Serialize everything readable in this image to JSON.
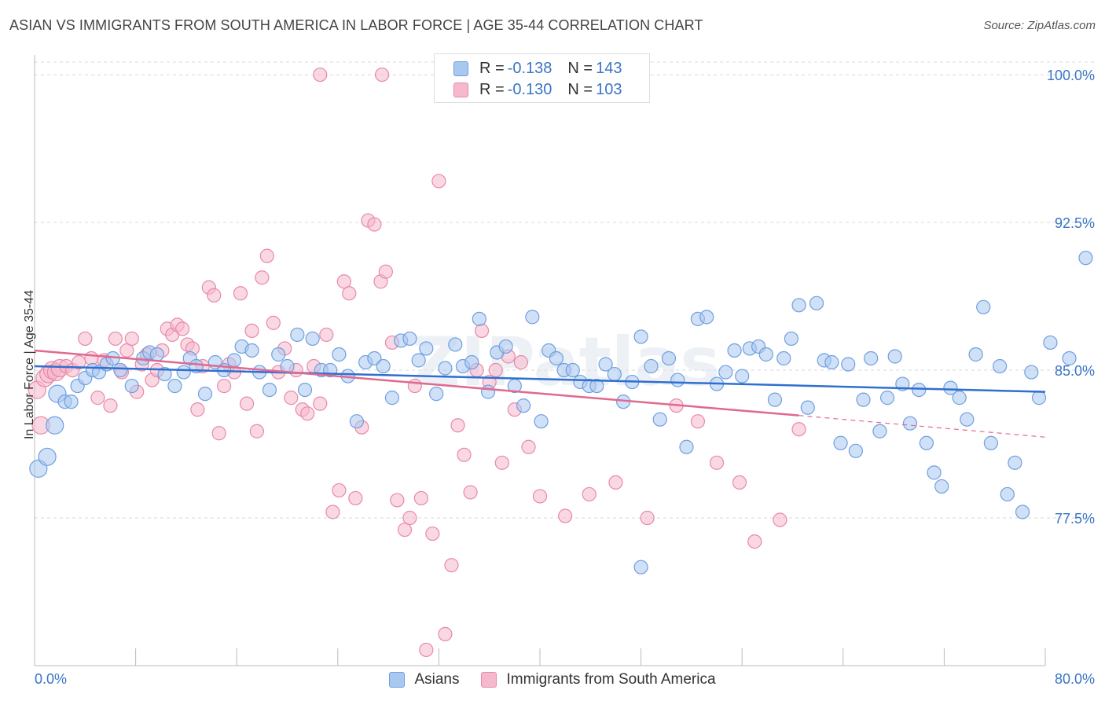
{
  "title": "ASIAN VS IMMIGRANTS FROM SOUTH AMERICA IN LABOR FORCE | AGE 35-44 CORRELATION CHART",
  "source": "Source: ZipAtlas.com",
  "watermark": "ZIPatlas",
  "legend_top": [
    {
      "r_label": "R =",
      "r_value": "-0.138",
      "n_label": "N =",
      "n_value": "143",
      "color": "#a9c8f0",
      "border": "#6f9fe0"
    },
    {
      "r_label": "R =",
      "r_value": "-0.130",
      "n_label": "N =",
      "n_value": "103",
      "color": "#f5b8cc",
      "border": "#e889a8"
    }
  ],
  "legend_bottom": [
    {
      "label": "Asians",
      "color": "#a9c8f0",
      "border": "#6f9fe0"
    },
    {
      "label": "Immigrants from South America",
      "color": "#f5b8cc",
      "border": "#e889a8"
    }
  ],
  "chart_data": {
    "type": "scatter",
    "title": "ASIAN VS IMMIGRANTS FROM SOUTH AMERICA IN LABOR FORCE | AGE 35-44 CORRELATION CHART",
    "xlabel": "",
    "ylabel": "In Labor Force | Age 35-44",
    "xlim": [
      0,
      80
    ],
    "ylim": [
      70.0,
      101.0
    ],
    "x_tick_labels": [
      "0.0%",
      "80.0%"
    ],
    "y_ticks": [
      77.5,
      85.0,
      92.5,
      100.0
    ],
    "y_tick_labels": [
      "77.5%",
      "85.0%",
      "92.5%",
      "100.0%"
    ],
    "grid": true,
    "series": [
      {
        "name": "Asians",
        "color": "#6f9fe0",
        "fill": "#a9c8f0",
        "trend": {
          "x": [
            0,
            80
          ],
          "y": [
            85.2,
            83.9
          ],
          "color": "#2f6fcf"
        },
        "points": [
          [
            0.3,
            80.0
          ],
          [
            1.0,
            80.6
          ],
          [
            1.6,
            82.2
          ],
          [
            1.8,
            83.8
          ],
          [
            2.4,
            83.4
          ],
          [
            2.9,
            83.4
          ],
          [
            3.4,
            84.2
          ],
          [
            4.0,
            84.6
          ],
          [
            4.6,
            85.0
          ],
          [
            5.1,
            84.9
          ],
          [
            5.7,
            85.3
          ],
          [
            6.2,
            85.6
          ],
          [
            6.8,
            85.0
          ],
          [
            7.7,
            84.2
          ],
          [
            8.6,
            85.6
          ],
          [
            9.1,
            85.9
          ],
          [
            9.7,
            85.8
          ],
          [
            10.3,
            84.8
          ],
          [
            11.1,
            84.2
          ],
          [
            11.8,
            84.9
          ],
          [
            12.3,
            85.6
          ],
          [
            12.8,
            85.2
          ],
          [
            13.5,
            83.8
          ],
          [
            14.3,
            85.4
          ],
          [
            15.0,
            85.0
          ],
          [
            15.8,
            85.5
          ],
          [
            16.4,
            86.2
          ],
          [
            17.2,
            86.0
          ],
          [
            17.8,
            84.9
          ],
          [
            18.6,
            84.0
          ],
          [
            19.3,
            85.8
          ],
          [
            20.0,
            85.2
          ],
          [
            20.8,
            86.8
          ],
          [
            21.4,
            84.0
          ],
          [
            22.0,
            86.6
          ],
          [
            22.7,
            85.0
          ],
          [
            23.4,
            85.0
          ],
          [
            24.1,
            85.8
          ],
          [
            24.8,
            84.7
          ],
          [
            25.5,
            82.4
          ],
          [
            26.2,
            85.4
          ],
          [
            26.9,
            85.6
          ],
          [
            27.6,
            85.2
          ],
          [
            28.3,
            83.6
          ],
          [
            29.0,
            86.5
          ],
          [
            29.7,
            86.6
          ],
          [
            30.4,
            85.5
          ],
          [
            31.0,
            86.1
          ],
          [
            31.8,
            83.8
          ],
          [
            32.5,
            85.1
          ],
          [
            33.3,
            86.3
          ],
          [
            33.9,
            85.2
          ],
          [
            34.6,
            85.4
          ],
          [
            35.2,
            87.6
          ],
          [
            35.9,
            83.9
          ],
          [
            36.6,
            85.9
          ],
          [
            37.3,
            86.2
          ],
          [
            38.0,
            84.2
          ],
          [
            38.7,
            83.2
          ],
          [
            39.4,
            87.7
          ],
          [
            40.1,
            82.4
          ],
          [
            40.7,
            86.0
          ],
          [
            41.3,
            85.6
          ],
          [
            41.9,
            85.0
          ],
          [
            42.6,
            85.0
          ],
          [
            43.2,
            84.4
          ],
          [
            43.9,
            84.2
          ],
          [
            44.5,
            84.2
          ],
          [
            45.2,
            85.3
          ],
          [
            45.9,
            84.8
          ],
          [
            46.6,
            83.4
          ],
          [
            47.3,
            84.4
          ],
          [
            48.0,
            86.7
          ],
          [
            48.8,
            85.2
          ],
          [
            49.5,
            82.5
          ],
          [
            50.2,
            85.6
          ],
          [
            50.9,
            84.5
          ],
          [
            51.6,
            81.1
          ],
          [
            52.5,
            87.6
          ],
          [
            53.2,
            87.7
          ],
          [
            54.0,
            84.3
          ],
          [
            54.7,
            84.9
          ],
          [
            55.4,
            86.0
          ],
          [
            56.0,
            84.7
          ],
          [
            56.6,
            86.1
          ],
          [
            57.3,
            86.2
          ],
          [
            57.9,
            85.8
          ],
          [
            58.6,
            83.5
          ],
          [
            59.3,
            85.6
          ],
          [
            59.9,
            86.6
          ],
          [
            60.5,
            88.3
          ],
          [
            61.2,
            83.1
          ],
          [
            61.9,
            88.4
          ],
          [
            62.5,
            85.5
          ],
          [
            63.1,
            85.4
          ],
          [
            63.8,
            81.3
          ],
          [
            64.4,
            85.3
          ],
          [
            65.0,
            80.9
          ],
          [
            65.6,
            83.5
          ],
          [
            66.2,
            85.6
          ],
          [
            66.9,
            81.9
          ],
          [
            67.5,
            83.6
          ],
          [
            68.1,
            85.7
          ],
          [
            68.7,
            84.3
          ],
          [
            69.3,
            82.3
          ],
          [
            70.0,
            84.0
          ],
          [
            70.6,
            81.3
          ],
          [
            71.2,
            79.8
          ],
          [
            71.8,
            79.1
          ],
          [
            72.5,
            84.1
          ],
          [
            73.2,
            83.6
          ],
          [
            73.8,
            82.5
          ],
          [
            74.5,
            85.8
          ],
          [
            75.1,
            88.2
          ],
          [
            75.7,
            81.3
          ],
          [
            76.4,
            85.2
          ],
          [
            77.0,
            78.7
          ],
          [
            77.6,
            80.3
          ],
          [
            78.2,
            77.8
          ],
          [
            78.9,
            84.9
          ],
          [
            79.5,
            83.6
          ],
          [
            80.4,
            86.4
          ],
          [
            81.9,
            85.6
          ],
          [
            83.2,
            90.7
          ],
          [
            48.0,
            75.0
          ]
        ]
      },
      {
        "name": "Immigrants from South America",
        "color": "#e889a8",
        "fill": "#f5b8cc",
        "trend": {
          "x": [
            0,
            60.5
          ],
          "y": [
            86.0,
            82.7
          ],
          "color": "#e0698f"
        },
        "trend_dashed": {
          "x": [
            60.5,
            80
          ],
          "y": [
            82.7,
            81.6
          ]
        },
        "points": [
          [
            0.2,
            84.0
          ],
          [
            0.5,
            82.2
          ],
          [
            0.8,
            84.6
          ],
          [
            1.1,
            84.8
          ],
          [
            1.4,
            85.0
          ],
          [
            1.7,
            84.9
          ],
          [
            2.0,
            85.1
          ],
          [
            2.5,
            85.2
          ],
          [
            3.0,
            85.0
          ],
          [
            3.5,
            85.4
          ],
          [
            4.0,
            86.6
          ],
          [
            4.5,
            85.6
          ],
          [
            5.0,
            83.6
          ],
          [
            5.5,
            85.5
          ],
          [
            6.0,
            83.2
          ],
          [
            6.4,
            86.6
          ],
          [
            6.9,
            84.9
          ],
          [
            7.3,
            86.0
          ],
          [
            7.7,
            86.6
          ],
          [
            8.1,
            83.9
          ],
          [
            8.5,
            85.3
          ],
          [
            8.9,
            85.8
          ],
          [
            9.3,
            84.5
          ],
          [
            9.7,
            85.0
          ],
          [
            10.1,
            86.0
          ],
          [
            10.5,
            87.1
          ],
          [
            10.9,
            86.8
          ],
          [
            11.3,
            87.3
          ],
          [
            11.7,
            87.1
          ],
          [
            12.1,
            86.3
          ],
          [
            12.5,
            86.1
          ],
          [
            12.9,
            83.0
          ],
          [
            13.3,
            85.2
          ],
          [
            13.8,
            89.2
          ],
          [
            14.2,
            88.8
          ],
          [
            14.6,
            81.8
          ],
          [
            15.0,
            84.2
          ],
          [
            15.4,
            85.3
          ],
          [
            15.8,
            84.9
          ],
          [
            16.3,
            88.9
          ],
          [
            16.8,
            83.3
          ],
          [
            17.2,
            87.0
          ],
          [
            17.6,
            81.9
          ],
          [
            18.0,
            89.7
          ],
          [
            18.4,
            90.8
          ],
          [
            18.9,
            87.4
          ],
          [
            19.3,
            84.9
          ],
          [
            19.8,
            86.1
          ],
          [
            20.3,
            83.6
          ],
          [
            20.7,
            85.0
          ],
          [
            21.2,
            83.0
          ],
          [
            21.6,
            82.8
          ],
          [
            22.1,
            85.2
          ],
          [
            22.6,
            83.3
          ],
          [
            23.1,
            86.8
          ],
          [
            23.6,
            77.8
          ],
          [
            24.1,
            78.9
          ],
          [
            24.5,
            89.5
          ],
          [
            24.9,
            88.9
          ],
          [
            25.4,
            78.5
          ],
          [
            25.9,
            82.1
          ],
          [
            26.4,
            92.6
          ],
          [
            26.9,
            92.4
          ],
          [
            27.4,
            89.5
          ],
          [
            27.8,
            90.0
          ],
          [
            28.3,
            86.4
          ],
          [
            28.7,
            78.4
          ],
          [
            29.3,
            76.9
          ],
          [
            29.7,
            77.5
          ],
          [
            30.1,
            84.2
          ],
          [
            30.6,
            78.5
          ],
          [
            31.0,
            70.8
          ],
          [
            31.5,
            76.7
          ],
          [
            32.0,
            94.6
          ],
          [
            32.5,
            71.6
          ],
          [
            33.0,
            75.1
          ],
          [
            33.5,
            82.2
          ],
          [
            34.0,
            80.7
          ],
          [
            34.5,
            78.8
          ],
          [
            35.0,
            85.0
          ],
          [
            35.4,
            87.0
          ],
          [
            36.0,
            84.4
          ],
          [
            36.5,
            85.0
          ],
          [
            37.0,
            80.3
          ],
          [
            37.5,
            85.7
          ],
          [
            38.0,
            83.0
          ],
          [
            38.5,
            85.4
          ],
          [
            39.1,
            81.1
          ],
          [
            40.0,
            78.6
          ],
          [
            42.0,
            77.6
          ],
          [
            43.9,
            78.7
          ],
          [
            46.0,
            79.3
          ],
          [
            48.5,
            77.5
          ],
          [
            50.8,
            83.2
          ],
          [
            52.5,
            82.4
          ],
          [
            54.0,
            80.3
          ],
          [
            55.8,
            79.3
          ],
          [
            57.0,
            76.3
          ],
          [
            59.0,
            77.4
          ],
          [
            60.5,
            82.0
          ],
          [
            22.6,
            100.0
          ],
          [
            27.5,
            100.0
          ],
          [
            38.2,
            100.0
          ]
        ]
      }
    ]
  }
}
